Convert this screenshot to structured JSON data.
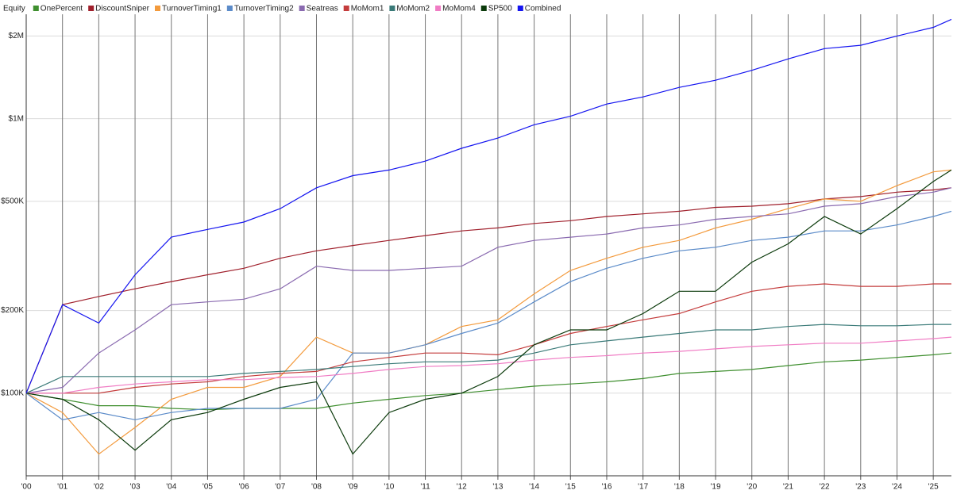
{
  "chart_data": {
    "type": "line",
    "title": "Equity",
    "y_scale": "log",
    "grid": true,
    "legend_position": "top-left",
    "x": [
      2000,
      2001,
      2002,
      2003,
      2004,
      2005,
      2006,
      2007,
      2008,
      2009,
      2010,
      2011,
      2012,
      2013,
      2014,
      2015,
      2016,
      2017,
      2018,
      2019,
      2020,
      2021,
      2022,
      2023,
      2024,
      2025,
      2025.5
    ],
    "xlim": [
      2000,
      2025.5
    ],
    "xticks": [
      {
        "value": 2000,
        "label": "'00"
      },
      {
        "value": 2001,
        "label": "'01"
      },
      {
        "value": 2002,
        "label": "'02"
      },
      {
        "value": 2003,
        "label": "'03"
      },
      {
        "value": 2004,
        "label": "'04"
      },
      {
        "value": 2005,
        "label": "'05"
      },
      {
        "value": 2006,
        "label": "'06"
      },
      {
        "value": 2007,
        "label": "'07"
      },
      {
        "value": 2008,
        "label": "'08"
      },
      {
        "value": 2009,
        "label": "'09"
      },
      {
        "value": 2010,
        "label": "'10"
      },
      {
        "value": 2011,
        "label": "'11"
      },
      {
        "value": 2012,
        "label": "'12"
      },
      {
        "value": 2013,
        "label": "'13"
      },
      {
        "value": 2014,
        "label": "'14"
      },
      {
        "value": 2015,
        "label": "'15"
      },
      {
        "value": 2016,
        "label": "'16"
      },
      {
        "value": 2017,
        "label": "'17"
      },
      {
        "value": 2018,
        "label": "'18"
      },
      {
        "value": 2019,
        "label": "'19"
      },
      {
        "value": 2020,
        "label": "'20"
      },
      {
        "value": 2021,
        "label": "'21"
      },
      {
        "value": 2022,
        "label": "'22"
      },
      {
        "value": 2023,
        "label": "'23"
      },
      {
        "value": 2024,
        "label": "'24"
      },
      {
        "value": 2025,
        "label": "'25"
      }
    ],
    "ylim": [
      50000,
      2400000
    ],
    "yticks": [
      {
        "value": 100000,
        "label": "$100K"
      },
      {
        "value": 200000,
        "label": "$200K"
      },
      {
        "value": 500000,
        "label": "$500K"
      },
      {
        "value": 1000000,
        "label": "$1M"
      },
      {
        "value": 2000000,
        "label": "$2M"
      }
    ],
    "series": [
      {
        "name": "OnePercent",
        "color": "#3f8f2f",
        "values": [
          100000,
          95000,
          90000,
          90000,
          88000,
          87000,
          88000,
          88000,
          88000,
          92000,
          95000,
          98000,
          100000,
          103000,
          106000,
          108000,
          110000,
          113000,
          118000,
          120000,
          122000,
          126000,
          130000,
          132000,
          135000,
          138000,
          140000
        ]
      },
      {
        "name": "DiscountSniper",
        "color": "#a0202c",
        "values": [
          100000,
          210000,
          225000,
          240000,
          255000,
          270000,
          285000,
          310000,
          330000,
          345000,
          360000,
          375000,
          390000,
          400000,
          415000,
          425000,
          440000,
          450000,
          460000,
          475000,
          480000,
          490000,
          510000,
          520000,
          540000,
          550000,
          560000
        ]
      },
      {
        "name": "TurnoverTiming1",
        "color": "#f39a3c",
        "values": [
          100000,
          85000,
          60000,
          75000,
          95000,
          105000,
          105000,
          115000,
          160000,
          140000,
          140000,
          150000,
          175000,
          185000,
          230000,
          280000,
          310000,
          340000,
          360000,
          400000,
          430000,
          470000,
          510000,
          500000,
          570000,
          640000,
          650000
        ]
      },
      {
        "name": "TurnoverTiming2",
        "color": "#5b8bc9",
        "values": [
          100000,
          80000,
          85000,
          80000,
          85000,
          88000,
          88000,
          88000,
          95000,
          140000,
          140000,
          150000,
          165000,
          180000,
          215000,
          255000,
          285000,
          310000,
          330000,
          340000,
          360000,
          370000,
          390000,
          390000,
          410000,
          440000,
          460000
        ]
      },
      {
        "name": "Seatreas",
        "color": "#8a6ab0",
        "values": [
          100000,
          105000,
          140000,
          170000,
          210000,
          215000,
          220000,
          240000,
          290000,
          280000,
          280000,
          285000,
          290000,
          340000,
          360000,
          370000,
          380000,
          400000,
          410000,
          430000,
          440000,
          450000,
          480000,
          490000,
          520000,
          540000,
          560000
        ]
      },
      {
        "name": "MoMom1",
        "color": "#c43c3c",
        "values": [
          100000,
          100000,
          100000,
          105000,
          108000,
          110000,
          115000,
          118000,
          120000,
          130000,
          135000,
          140000,
          140000,
          138000,
          150000,
          165000,
          175000,
          185000,
          195000,
          215000,
          235000,
          245000,
          250000,
          245000,
          245000,
          250000,
          250000
        ]
      },
      {
        "name": "MoMom2",
        "color": "#3a7a78",
        "values": [
          100000,
          115000,
          115000,
          115000,
          115000,
          115000,
          118000,
          120000,
          122000,
          125000,
          128000,
          130000,
          130000,
          132000,
          140000,
          150000,
          155000,
          160000,
          165000,
          170000,
          170000,
          175000,
          178000,
          176000,
          176000,
          178000,
          178000
        ]
      },
      {
        "name": "MoMom4",
        "color": "#f07cc4",
        "values": [
          100000,
          100000,
          105000,
          108000,
          110000,
          112000,
          112000,
          114000,
          115000,
          118000,
          122000,
          125000,
          126000,
          128000,
          132000,
          135000,
          137000,
          140000,
          142000,
          145000,
          148000,
          150000,
          152000,
          152000,
          155000,
          158000,
          160000
        ]
      },
      {
        "name": "SP500",
        "color": "#0b3a0b",
        "values": [
          100000,
          95000,
          80000,
          62000,
          80000,
          85000,
          95000,
          105000,
          110000,
          60000,
          85000,
          95000,
          100000,
          115000,
          150000,
          170000,
          170000,
          195000,
          235000,
          235000,
          300000,
          350000,
          440000,
          380000,
          470000,
          590000,
          650000
        ]
      },
      {
        "name": "Combined",
        "color": "#1414f0",
        "values": [
          100000,
          210000,
          180000,
          270000,
          370000,
          395000,
          420000,
          470000,
          560000,
          620000,
          650000,
          700000,
          780000,
          850000,
          950000,
          1020000,
          1130000,
          1200000,
          1300000,
          1380000,
          1500000,
          1650000,
          1800000,
          1850000,
          2000000,
          2150000,
          2300000
        ]
      }
    ]
  }
}
